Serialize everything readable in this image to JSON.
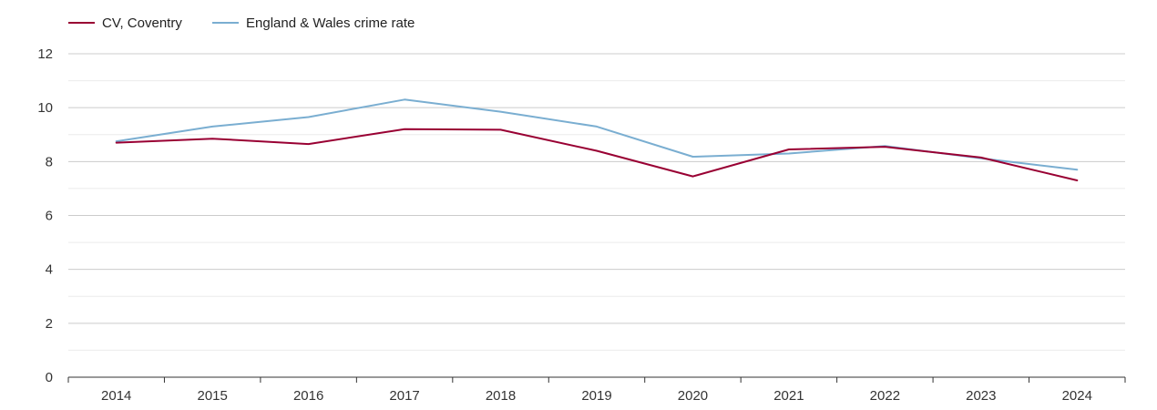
{
  "chart_data": {
    "type": "line",
    "title": "",
    "xlabel": "",
    "ylabel": "",
    "categories": [
      "2014",
      "2015",
      "2016",
      "2017",
      "2018",
      "2019",
      "2020",
      "2021",
      "2022",
      "2023",
      "2024"
    ],
    "ylim": [
      0,
      12
    ],
    "yticks": [
      0,
      2,
      4,
      6,
      8,
      10,
      12
    ],
    "grid": true,
    "legend_position": "top-left",
    "series": [
      {
        "name": "CV, Coventry",
        "color": "#990033",
        "values": [
          8.7,
          8.85,
          8.65,
          9.2,
          9.18,
          8.4,
          7.45,
          8.45,
          8.55,
          8.15,
          7.3
        ]
      },
      {
        "name": "England & Wales crime rate",
        "color": "#7aaed1",
        "values": [
          8.75,
          9.3,
          9.65,
          10.3,
          9.85,
          9.3,
          8.18,
          8.3,
          8.58,
          8.12,
          7.7
        ]
      }
    ]
  }
}
